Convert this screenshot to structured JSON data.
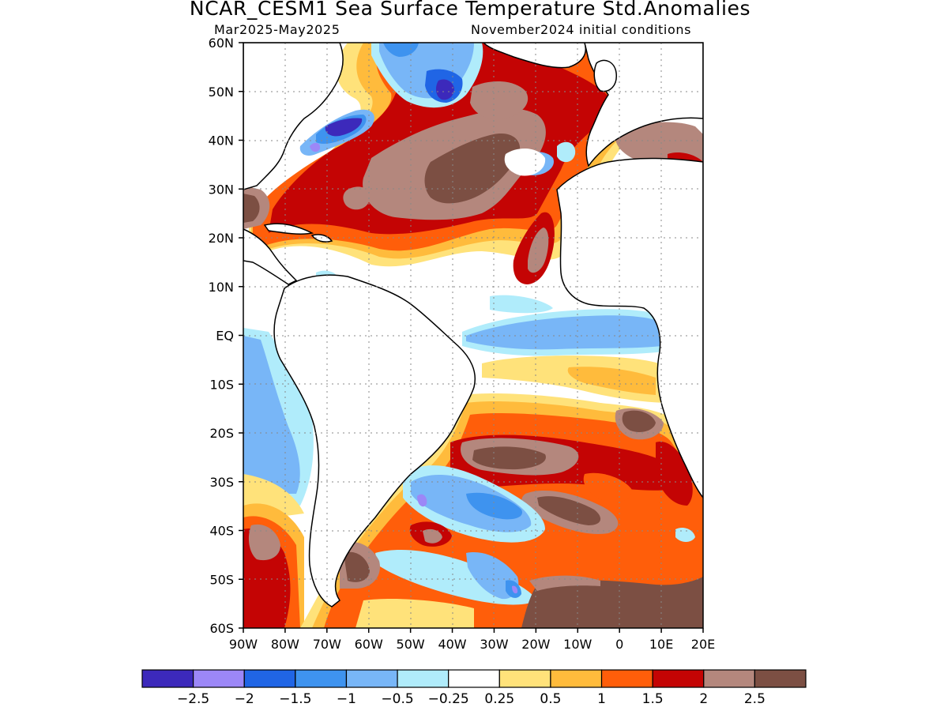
{
  "title": "NCAR_CESM1 Sea Surface Temperature Std.Anomalies",
  "subtitle_left": "Mar2025-May2025",
  "subtitle_right": "November2024 initial conditions",
  "map": {
    "lon_range": [
      -90,
      20
    ],
    "lat_range": [
      -60,
      60
    ],
    "grid": "dotted",
    "x_ticks": [
      {
        "lon": -90,
        "label": "90W"
      },
      {
        "lon": -80,
        "label": "80W"
      },
      {
        "lon": -70,
        "label": "70W"
      },
      {
        "lon": -60,
        "label": "60W"
      },
      {
        "lon": -50,
        "label": "50W"
      },
      {
        "lon": -40,
        "label": "40W"
      },
      {
        "lon": -30,
        "label": "30W"
      },
      {
        "lon": -20,
        "label": "20W"
      },
      {
        "lon": -10,
        "label": "10W"
      },
      {
        "lon": 0,
        "label": "0"
      },
      {
        "lon": 10,
        "label": "10E"
      },
      {
        "lon": 20,
        "label": "20E"
      }
    ],
    "y_ticks": [
      {
        "lat": 60,
        "label": "60N"
      },
      {
        "lat": 50,
        "label": "50N"
      },
      {
        "lat": 40,
        "label": "40N"
      },
      {
        "lat": 30,
        "label": "30N"
      },
      {
        "lat": 20,
        "label": "20N"
      },
      {
        "lat": 10,
        "label": "10N"
      },
      {
        "lat": 0,
        "label": "EQ"
      },
      {
        "lat": -10,
        "label": "10S"
      },
      {
        "lat": -20,
        "label": "20S"
      },
      {
        "lat": -30,
        "label": "30S"
      },
      {
        "lat": -40,
        "label": "40S"
      },
      {
        "lat": -50,
        "label": "50S"
      },
      {
        "lat": -60,
        "label": "60S"
      }
    ]
  },
  "colorbar": {
    "colors": [
      "#3c29bb",
      "#9c87f7",
      "#2065e5",
      "#3e93ef",
      "#78b6f7",
      "#b0ecfb",
      "#ffffff",
      "#ffe27a",
      "#ffbb3c",
      "#ff5e0a",
      "#c40404",
      "#b4877d",
      "#7c4f43"
    ],
    "labels": [
      "-2.5",
      "-2",
      "-1.5",
      "-1",
      "-0.5",
      "-0.25",
      "0.25",
      "0.5",
      "1",
      "1.5",
      "2",
      "2.5"
    ]
  },
  "regions": [
    {
      "name": "north-atlantic-warm-band",
      "value": 2,
      "color": "#c40404"
    },
    {
      "name": "subtropical-north-atlantic-max",
      "value": 2.5,
      "color": "#7c4f43"
    },
    {
      "name": "us-northeast-coast-cold-patch",
      "value": -2.5,
      "color": "#3c29bb"
    },
    {
      "name": "labrador-sea-cold-patch",
      "value": -1.5,
      "color": "#2065e5"
    },
    {
      "name": "equatorial-atlantic-cold-tongue",
      "value": -0.5,
      "color": "#78b6f7"
    },
    {
      "name": "south-atlantic-warm-band",
      "value": 2,
      "color": "#c40404"
    },
    {
      "name": "southeast-pacific-cool-region",
      "value": -0.5,
      "color": "#78b6f7"
    },
    {
      "name": "brazil-malvinas-cold-patch",
      "value": -1.5,
      "color": "#2065e5"
    },
    {
      "name": "southern-ocean-warm-region",
      "value": 2.5,
      "color": "#7c4f43"
    }
  ]
}
